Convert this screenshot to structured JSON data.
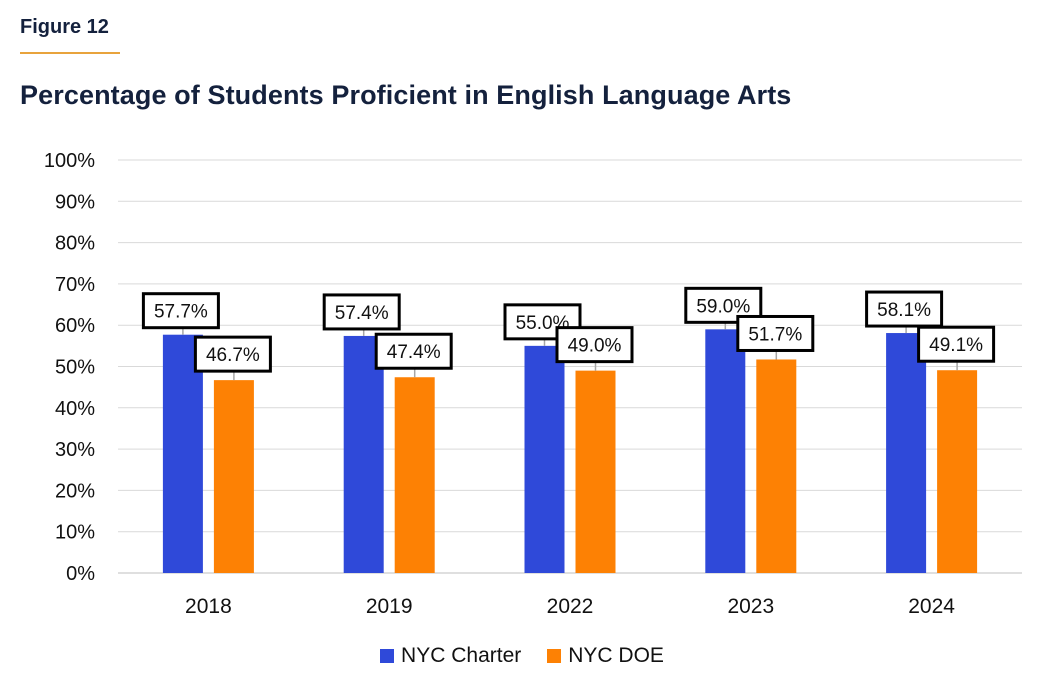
{
  "figure_label": "Figure 12",
  "chart_data": {
    "type": "bar",
    "title": "Percentage of Students Proficient in English Language Arts",
    "categories": [
      "2018",
      "2019",
      "2022",
      "2023",
      "2024"
    ],
    "series": [
      {
        "name": "NYC Charter",
        "color": "#2f49d9",
        "values": [
          57.7,
          57.4,
          55.0,
          59.0,
          58.1
        ],
        "labels": [
          "57.7%",
          "57.4%",
          "55.0%",
          "59.0%",
          "58.1%"
        ]
      },
      {
        "name": "NYC DOE",
        "color": "#fd8104",
        "values": [
          46.7,
          47.4,
          49.0,
          51.7,
          49.1
        ],
        "labels": [
          "46.7%",
          "47.4%",
          "49.0%",
          "51.7%",
          "49.1%"
        ]
      }
    ],
    "ylim": [
      0,
      100
    ],
    "yticks": [
      "0%",
      "10%",
      "20%",
      "30%",
      "40%",
      "50%",
      "60%",
      "70%",
      "80%",
      "90%",
      "100%"
    ],
    "grid": true,
    "legend_position": "bottom"
  }
}
